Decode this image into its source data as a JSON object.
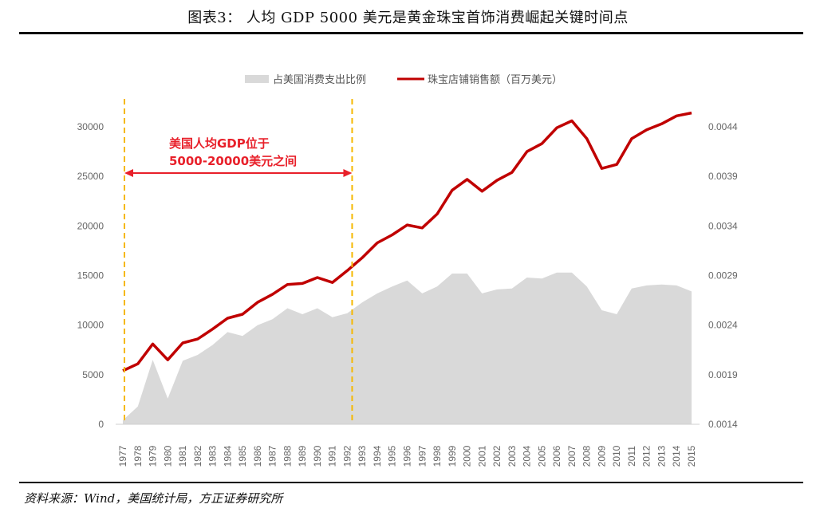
{
  "header": {
    "title": "图表3：  人均 GDP 5000 美元是黄金珠宝首饰消费崛起关键时间点"
  },
  "footer": {
    "source": "资料来源：Wind，美国统计局，方正证券研究所"
  },
  "colors": {
    "area": "#d9d9d9",
    "line": "#c00000",
    "marker": "#f5b800",
    "annotation": "#e8202a"
  },
  "chart_data": {
    "type": "area+line",
    "title": "",
    "legend_position": "top",
    "categories": [
      "1977",
      "1978",
      "1979",
      "1980",
      "1981",
      "1982",
      "1983",
      "1984",
      "1985",
      "1986",
      "1987",
      "1988",
      "1989",
      "1990",
      "1991",
      "1992",
      "1993",
      "1994",
      "1995",
      "1996",
      "1997",
      "1998",
      "1999",
      "2000",
      "2001",
      "2002",
      "2003",
      "2004",
      "2005",
      "2006",
      "2007",
      "2008",
      "2009",
      "2010",
      "2011",
      "2012",
      "2013",
      "2014",
      "2015"
    ],
    "series": [
      {
        "name": "占美国消费支出比例",
        "type": "area",
        "axis": "right",
        "values": [
          0.00144,
          0.00158,
          0.00205,
          0.00166,
          0.00204,
          0.0021,
          0.0022,
          0.00233,
          0.00229,
          0.0024,
          0.00246,
          0.00257,
          0.00251,
          0.00257,
          0.00248,
          0.00252,
          0.00263,
          0.00272,
          0.00279,
          0.00285,
          0.00272,
          0.00279,
          0.00292,
          0.00292,
          0.00272,
          0.00276,
          0.00277,
          0.00288,
          0.00287,
          0.00293,
          0.00293,
          0.00279,
          0.00255,
          0.00251,
          0.00277,
          0.0028,
          0.00281,
          0.0028,
          0.00274
        ]
      },
      {
        "name": "珠宝店铺销售额（百万美元）",
        "type": "line",
        "axis": "left",
        "values": [
          5400,
          6100,
          8100,
          6500,
          8200,
          8600,
          9600,
          10700,
          11100,
          12300,
          13100,
          14100,
          14200,
          14800,
          14300,
          15500,
          16800,
          18300,
          19100,
          20100,
          19800,
          21200,
          23600,
          24700,
          23500,
          24600,
          25400,
          27500,
          28300,
          29900,
          30600,
          28800,
          25800,
          26200,
          28800,
          29700,
          30300,
          31100,
          31400
        ]
      }
    ],
    "y_left": {
      "min": 0,
      "max": 30000,
      "ticks": [
        "0",
        "5000",
        "10000",
        "15000",
        "20000",
        "25000",
        "30000"
      ]
    },
    "y_right": {
      "min": 0.0014,
      "max": 0.0044,
      "ticks": [
        "0.0014",
        "0.0019",
        "0.0024",
        "0.0029",
        "0.0034",
        "0.0039",
        "0.0044"
      ]
    },
    "annotation": {
      "line1": "美国人均GDP位于",
      "line2": "5000-20000美元之间",
      "start_year": "1977",
      "end_year": "1992"
    }
  }
}
